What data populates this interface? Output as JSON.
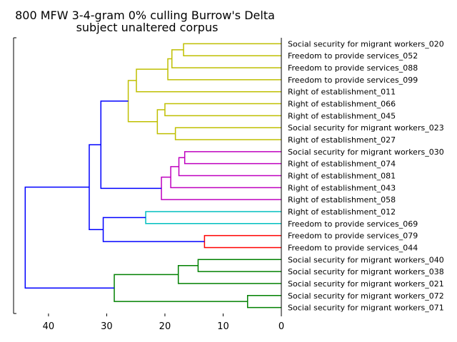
{
  "chart_data": {
    "type": "dendrogram",
    "title_lines": [
      "800 MFW 3-4-gram 0% culling Burrow's Delta",
      "subject unaltered corpus"
    ],
    "orientation": "left",
    "xlim": [
      46,
      0
    ],
    "xticks": [
      40,
      30,
      20,
      10,
      0
    ],
    "leaves": [
      "Social security for migrant workers_020",
      "Freedom to provide services_052",
      "Freedom to provide services_088",
      "Freedom to provide services_099",
      "Right of establishment_011",
      "Right of establishment_066",
      "Right of establishment_045",
      "Social security for migrant workers_023",
      "Right of establishment_027",
      "Social security for migrant workers_030",
      "Right of establishment_074",
      "Right of establishment_081",
      "Right of establishment_043",
      "Right of establishment_058",
      "Right of establishment_012",
      "Freedom to provide services_069",
      "Freedom to provide services_079",
      "Freedom to provide services_044",
      "Social security for migrant workers_040",
      "Social security for migrant workers_038",
      "Social security for migrant workers_021",
      "Social security for migrant workers_072",
      "Social security for migrant workers_071"
    ],
    "colors": {
      "yellow": "#bfbf00",
      "magenta": "#bf00bf",
      "cyan": "#00bfbf",
      "red": "#ff0000",
      "green": "#008000",
      "blue": "#0000ff"
    },
    "merges": [
      {
        "id": "n1",
        "left": 0,
        "right": 1,
        "height": 16.8,
        "color": "yellow"
      },
      {
        "id": "n2",
        "left": "n1",
        "right": 2,
        "height": 18.8,
        "color": "yellow"
      },
      {
        "id": "n3",
        "left": "n2",
        "right": 3,
        "height": 19.5,
        "color": "yellow"
      },
      {
        "id": "n4",
        "left": "n3",
        "right": 4,
        "height": 24.9,
        "color": "yellow"
      },
      {
        "id": "n5",
        "left": 5,
        "right": 6,
        "height": 20.0,
        "color": "yellow"
      },
      {
        "id": "n6",
        "left": 7,
        "right": 8,
        "height": 18.2,
        "color": "yellow"
      },
      {
        "id": "n7",
        "left": "n5",
        "right": "n6",
        "height": 21.3,
        "color": "yellow"
      },
      {
        "id": "n8",
        "left": "n4",
        "right": "n7",
        "height": 26.3,
        "color": "yellow"
      },
      {
        "id": "n9",
        "left": 9,
        "right": 10,
        "height": 16.6,
        "color": "magenta"
      },
      {
        "id": "n10",
        "left": "n9",
        "right": 11,
        "height": 17.6,
        "color": "magenta"
      },
      {
        "id": "n11",
        "left": "n10",
        "right": 12,
        "height": 19.0,
        "color": "magenta"
      },
      {
        "id": "n12",
        "left": "n11",
        "right": 13,
        "height": 20.6,
        "color": "magenta"
      },
      {
        "id": "n13",
        "left": "n8",
        "right": "n12",
        "height": 31.0,
        "color": "blue"
      },
      {
        "id": "n14",
        "left": 14,
        "right": 15,
        "height": 23.3,
        "color": "cyan"
      },
      {
        "id": "n15",
        "left": 16,
        "right": 17,
        "height": 13.2,
        "color": "red"
      },
      {
        "id": "n16",
        "left": "n14",
        "right": "n15",
        "height": 30.6,
        "color": "blue"
      },
      {
        "id": "n17",
        "left": "n13",
        "right": "n16",
        "height": 33.0,
        "color": "blue"
      },
      {
        "id": "n18",
        "left": 18,
        "right": 19,
        "height": 14.3,
        "color": "green"
      },
      {
        "id": "n19",
        "left": "n18",
        "right": 20,
        "height": 17.7,
        "color": "green"
      },
      {
        "id": "n20",
        "left": 21,
        "right": 22,
        "height": 5.8,
        "color": "green"
      },
      {
        "id": "n21",
        "left": "n19",
        "right": "n20",
        "height": 28.7,
        "color": "green"
      },
      {
        "id": "n22",
        "left": "n17",
        "right": "n21",
        "height": 44.0,
        "color": "blue"
      }
    ]
  }
}
